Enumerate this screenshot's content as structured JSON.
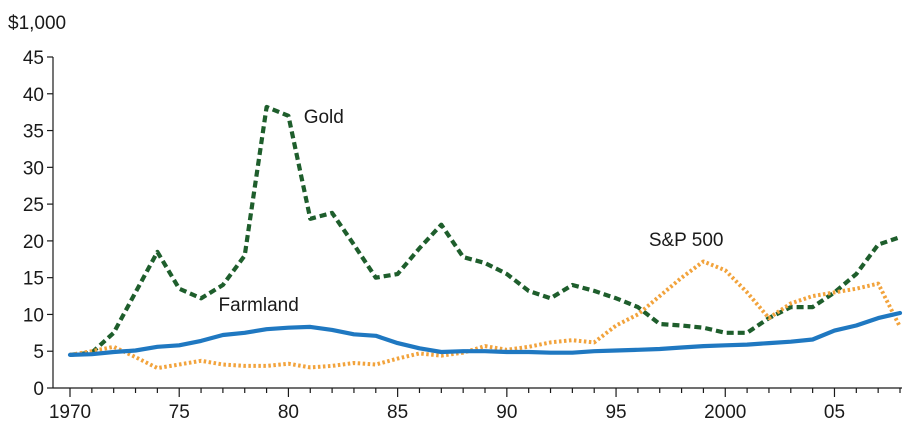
{
  "chart_data": {
    "type": "line",
    "title": "",
    "xlabel": "",
    "ylabel": "",
    "y_unit_label": "$1,000",
    "xlim": [
      1970,
      2008
    ],
    "ylim": [
      0,
      45
    ],
    "y_ticks": [
      0,
      5,
      10,
      15,
      20,
      25,
      30,
      35,
      40,
      45
    ],
    "y_tick_labels": [
      "0",
      "5",
      "10",
      "15",
      "20",
      "25",
      "30",
      "35",
      "40",
      "45"
    ],
    "x_ticks": [
      1970,
      1975,
      1980,
      1985,
      1990,
      1995,
      2000,
      2005
    ],
    "x_tick_labels": [
      "1970",
      "75",
      "80",
      "85",
      "90",
      "95",
      "2000",
      "05"
    ],
    "grid": false,
    "legend": "none",
    "x": [
      1970,
      1971,
      1972,
      1973,
      1974,
      1975,
      1976,
      1977,
      1978,
      1979,
      1980,
      1981,
      1982,
      1983,
      1984,
      1985,
      1986,
      1987,
      1988,
      1989,
      1990,
      1991,
      1992,
      1993,
      1994,
      1995,
      1996,
      1997,
      1998,
      1999,
      2000,
      2001,
      2002,
      2003,
      2004,
      2005,
      2006,
      2007,
      2008
    ],
    "series": [
      {
        "name": "Gold",
        "color": "#1e5e2c",
        "style": "dashed",
        "label_at": [
          1980.7,
          36
        ],
        "values": [
          4.5,
          4.8,
          7.5,
          13.0,
          18.5,
          13.5,
          12.2,
          14.0,
          18.0,
          38.2,
          37.0,
          23.0,
          23.8,
          19.5,
          15.0,
          15.5,
          19.0,
          22.2,
          17.8,
          17.0,
          15.5,
          13.2,
          12.2,
          14.0,
          13.2,
          12.2,
          11.0,
          8.7,
          8.5,
          8.2,
          7.5,
          7.5,
          9.5,
          11.0,
          11.0,
          13.0,
          15.5,
          19.5,
          20.5
        ]
      },
      {
        "name": "S&P 500",
        "color": "#f2a33c",
        "style": "dotted",
        "label_at": [
          1996.5,
          19.3
        ],
        "values": [
          4.5,
          5.0,
          5.6,
          4.2,
          2.7,
          3.2,
          3.7,
          3.2,
          3.0,
          3.0,
          3.3,
          2.8,
          3.0,
          3.4,
          3.2,
          4.0,
          4.7,
          4.4,
          4.8,
          5.7,
          5.2,
          5.6,
          6.2,
          6.5,
          6.2,
          8.5,
          10.0,
          12.5,
          15.0,
          17.2,
          16.0,
          13.0,
          9.5,
          11.5,
          12.5,
          13.0,
          13.5,
          14.2,
          8.3
        ]
      },
      {
        "name": "Farmland",
        "color": "#1f78c1",
        "style": "solid",
        "label_at": [
          1976.8,
          10.5
        ],
        "values": [
          4.5,
          4.6,
          4.9,
          5.1,
          5.6,
          5.8,
          6.4,
          7.2,
          7.5,
          8.0,
          8.2,
          8.3,
          7.9,
          7.3,
          7.1,
          6.1,
          5.4,
          4.9,
          5.0,
          5.0,
          4.9,
          4.9,
          4.8,
          4.8,
          5.0,
          5.1,
          5.2,
          5.3,
          5.5,
          5.7,
          5.8,
          5.9,
          6.1,
          6.3,
          6.6,
          7.8,
          8.5,
          9.5,
          10.2
        ]
      }
    ]
  }
}
